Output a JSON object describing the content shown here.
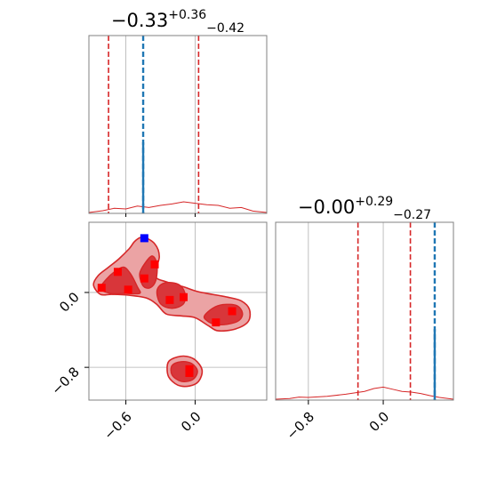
{
  "chart_data": {
    "type": "corner",
    "parameters": 2,
    "colors": {
      "posterior": "#d62728",
      "truth": "#1f77b4",
      "marker": "#ff0000",
      "highlight_marker": "#0000ff",
      "grid": "#b0b0b0"
    },
    "grid": true,
    "panels": [
      {
        "id": "param1-marginal",
        "kind": "histogram",
        "title": {
          "value": "−0.33",
          "upper": "+0.36",
          "lower": "−0.42"
        },
        "xlim": [
          -0.92,
          0.62
        ],
        "gridlines_x": [
          -0.6,
          0.0
        ],
        "quantile_lines": [
          -0.75,
          0.03
        ],
        "truth_line": -0.45,
        "curve": {
          "x": [
            -0.92,
            -0.8,
            -0.7,
            -0.6,
            -0.5,
            -0.4,
            -0.3,
            -0.2,
            -0.1,
            0.0,
            0.1,
            0.2,
            0.3,
            0.4,
            0.5,
            0.62
          ],
          "density": [
            0.0,
            0.005,
            0.012,
            0.01,
            0.018,
            0.014,
            0.02,
            0.024,
            0.03,
            0.026,
            0.022,
            0.02,
            0.012,
            0.014,
            0.004,
            0.0
          ]
        }
      },
      {
        "id": "param2-marginal",
        "kind": "histogram",
        "title": {
          "value": "−0.00",
          "upper": "+0.29",
          "lower": "−0.27"
        },
        "xlim": [
          -1.15,
          0.75
        ],
        "gridlines_x": [
          -0.8,
          0.0
        ],
        "quantile_lines": [
          -0.27,
          0.29
        ],
        "truth_line": 0.55,
        "curve": {
          "x": [
            -1.15,
            -1.0,
            -0.9,
            -0.8,
            -0.6,
            -0.4,
            -0.2,
            -0.1,
            0.0,
            0.1,
            0.2,
            0.3,
            0.4,
            0.5,
            0.6,
            0.75
          ],
          "density": [
            0.0,
            0.002,
            0.006,
            0.005,
            0.008,
            0.014,
            0.022,
            0.03,
            0.034,
            0.028,
            0.022,
            0.02,
            0.016,
            0.01,
            0.005,
            0.0
          ]
        }
      },
      {
        "id": "joint",
        "kind": "contour",
        "xlim": [
          -0.92,
          0.62
        ],
        "ylim": [
          -1.15,
          0.75
        ],
        "gridlines_x": [
          -0.6,
          0.0
        ],
        "gridlines_y": [
          0.0,
          -0.8
        ],
        "outer_contour": [
          [
            -0.88,
            0.08
          ],
          [
            -0.84,
            0.18
          ],
          [
            -0.75,
            0.27
          ],
          [
            -0.66,
            0.36
          ],
          [
            -0.57,
            0.47
          ],
          [
            -0.52,
            0.55
          ],
          [
            -0.45,
            0.59
          ],
          [
            -0.35,
            0.52
          ],
          [
            -0.31,
            0.38
          ],
          [
            -0.35,
            0.18
          ],
          [
            -0.24,
            0.11
          ],
          [
            -0.1,
            0.06
          ],
          [
            0.02,
            0.01
          ],
          [
            0.15,
            -0.02
          ],
          [
            0.28,
            -0.05
          ],
          [
            0.4,
            -0.09
          ],
          [
            0.47,
            -0.18
          ],
          [
            0.46,
            -0.31
          ],
          [
            0.35,
            -0.39
          ],
          [
            0.2,
            -0.41
          ],
          [
            0.12,
            -0.36
          ],
          [
            0.0,
            -0.27
          ],
          [
            -0.12,
            -0.25
          ],
          [
            -0.25,
            -0.23
          ],
          [
            -0.33,
            -0.13
          ],
          [
            -0.42,
            -0.06
          ],
          [
            -0.57,
            -0.03
          ],
          [
            -0.72,
            -0.02
          ],
          [
            -0.82,
            -0.02
          ]
        ],
        "outer_contour_2": [
          [
            -0.24,
            -0.77
          ],
          [
            -0.2,
            -0.71
          ],
          [
            -0.1,
            -0.68
          ],
          [
            0.0,
            -0.72
          ],
          [
            0.06,
            -0.83
          ],
          [
            0.03,
            -0.95
          ],
          [
            -0.05,
            -1.0
          ],
          [
            -0.15,
            -0.99
          ],
          [
            -0.23,
            -0.9
          ]
        ],
        "inner_contours": [
          [
            [
              -0.82,
              0.04
            ],
            [
              -0.77,
              0.14
            ],
            [
              -0.7,
              0.22
            ],
            [
              -0.62,
              0.27
            ],
            [
              -0.56,
              0.2
            ],
            [
              -0.5,
              0.06
            ],
            [
              -0.48,
              -0.01
            ],
            [
              -0.6,
              -0.01
            ],
            [
              -0.73,
              -0.01
            ]
          ],
          [
            [
              -0.48,
              0.2
            ],
            [
              -0.43,
              0.32
            ],
            [
              -0.37,
              0.39
            ],
            [
              -0.33,
              0.3
            ],
            [
              -0.34,
              0.13
            ],
            [
              -0.39,
              0.05
            ],
            [
              -0.45,
              0.07
            ]
          ],
          [
            [
              -0.33,
              0.02
            ],
            [
              -0.27,
              0.1
            ],
            [
              -0.15,
              0.09
            ],
            [
              -0.09,
              0.0
            ],
            [
              -0.1,
              -0.12
            ],
            [
              -0.2,
              -0.17
            ],
            [
              -0.3,
              -0.12
            ]
          ],
          [
            [
              0.08,
              -0.25
            ],
            [
              0.15,
              -0.17
            ],
            [
              0.24,
              -0.13
            ],
            [
              0.36,
              -0.14
            ],
            [
              0.41,
              -0.22
            ],
            [
              0.38,
              -0.3
            ],
            [
              0.28,
              -0.34
            ],
            [
              0.17,
              -0.34
            ],
            [
              0.1,
              -0.3
            ]
          ],
          [
            [
              -0.2,
              -0.78
            ],
            [
              -0.12,
              -0.74
            ],
            [
              -0.03,
              -0.76
            ],
            [
              0.02,
              -0.84
            ],
            [
              -0.02,
              -0.93
            ],
            [
              -0.12,
              -0.95
            ],
            [
              -0.2,
              -0.88
            ]
          ]
        ],
        "markers": [
          {
            "x": -0.81,
            "y": 0.05
          },
          {
            "x": -0.67,
            "y": 0.22
          },
          {
            "x": -0.58,
            "y": 0.03
          },
          {
            "x": -0.44,
            "y": 0.15
          },
          {
            "x": -0.35,
            "y": 0.3
          },
          {
            "x": -0.22,
            "y": -0.08
          },
          {
            "x": -0.1,
            "y": -0.05
          },
          {
            "x": 0.18,
            "y": -0.32
          },
          {
            "x": 0.32,
            "y": -0.2
          },
          {
            "x": -0.05,
            "y": -0.82
          },
          {
            "x": -0.05,
            "y": -0.86
          }
        ],
        "highlight_marker": {
          "x": -0.44,
          "y": 0.58
        }
      }
    ],
    "x_tick_labels": {
      "param1": [
        {
          "value": -0.6,
          "label": "−0.6"
        },
        {
          "value": 0.0,
          "label": "0.0"
        }
      ],
      "param2": [
        {
          "value": -0.8,
          "label": "−0.8"
        },
        {
          "value": 0.0,
          "label": "0.0"
        }
      ]
    },
    "y_tick_labels": {
      "param2": [
        {
          "value": 0.0,
          "label": "0.0"
        },
        {
          "value": -0.8,
          "label": "−0.8"
        }
      ]
    }
  }
}
